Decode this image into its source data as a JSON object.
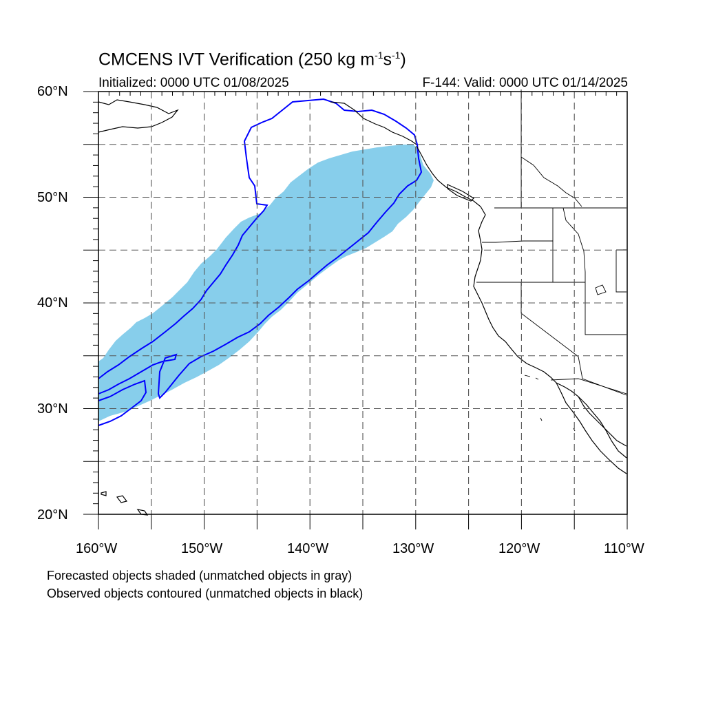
{
  "title": {
    "main": "CMCENS IVT Verification (250 kg m",
    "exp1": "-1",
    "mid": "s",
    "exp2": "-1",
    "close": ")"
  },
  "subtitle": {
    "initialized": "Initialized: 0000 UTC 01/08/2025",
    "valid": "F-144: Valid: 0000 UTC 01/14/2025"
  },
  "lat_labels": [
    "60°N",
    "50°N",
    "40°N",
    "30°N",
    "20°N"
  ],
  "lon_labels": [
    "160°W",
    "150°W",
    "140°W",
    "130°W",
    "120°W",
    "110°W"
  ],
  "notes": {
    "line1": "Forecasted objects shaded (unmatched objects in gray)",
    "line2": "Observed objects contoured (unmatched objects in black)"
  },
  "map": {
    "lon_range": [
      -160,
      -110
    ],
    "lat_range": [
      20,
      60
    ],
    "grid_step_deg": 5,
    "forecast_fill_color": "#87ceeb",
    "observed_contour_color": "#0000ff",
    "coast_color": "#000000"
  }
}
